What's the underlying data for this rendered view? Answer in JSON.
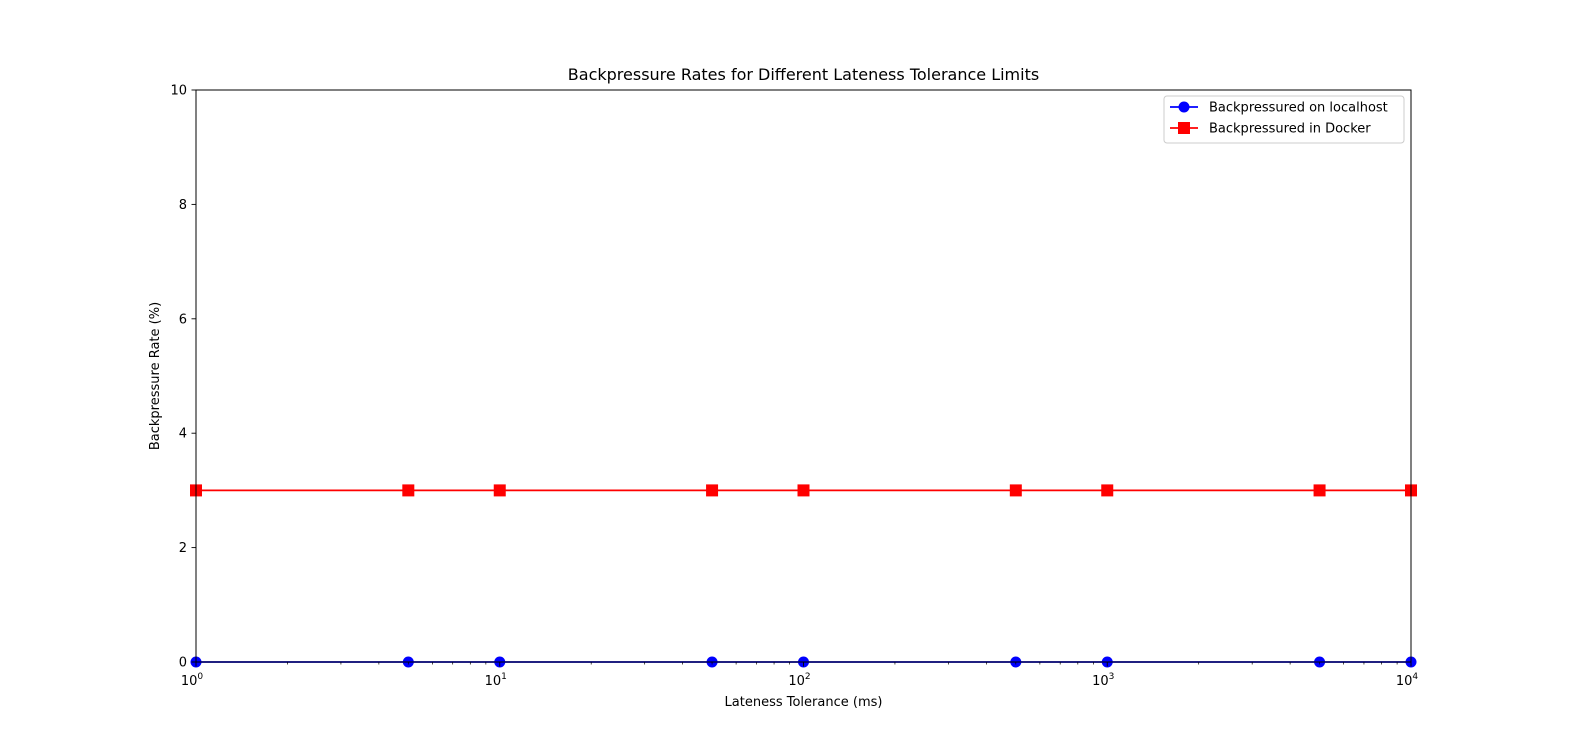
{
  "chart_data": {
    "type": "line",
    "title": "Backpressure Rates for Different Lateness Tolerance Limits",
    "xlabel": "Lateness Tolerance (ms)",
    "ylabel": "Backpressure Rate (%)",
    "xscale": "log",
    "xlim": [
      1,
      10000
    ],
    "ylim": [
      0,
      10
    ],
    "x_ticks": [
      {
        "value": 1,
        "base": "10",
        "exp": "0"
      },
      {
        "value": 10,
        "base": "10",
        "exp": "1"
      },
      {
        "value": 100,
        "base": "10",
        "exp": "2"
      },
      {
        "value": 1000,
        "base": "10",
        "exp": "3"
      },
      {
        "value": 10000,
        "base": "10",
        "exp": "4"
      }
    ],
    "y_ticks": [
      0,
      2,
      4,
      6,
      8,
      10
    ],
    "grid": false,
    "legend_position": "top-right",
    "x": [
      1,
      5,
      10,
      50,
      100,
      500,
      1000,
      5000,
      10000
    ],
    "series": [
      {
        "name": "Backpressured on localhost",
        "color": "#0000ff",
        "marker": "circle",
        "values": [
          0,
          0,
          0,
          0,
          0,
          0,
          0,
          0,
          0
        ]
      },
      {
        "name": "Backpressured in Docker",
        "color": "#ff0000",
        "marker": "square",
        "values": [
          3,
          3,
          3,
          3,
          3,
          3,
          3,
          3,
          3
        ]
      }
    ]
  }
}
